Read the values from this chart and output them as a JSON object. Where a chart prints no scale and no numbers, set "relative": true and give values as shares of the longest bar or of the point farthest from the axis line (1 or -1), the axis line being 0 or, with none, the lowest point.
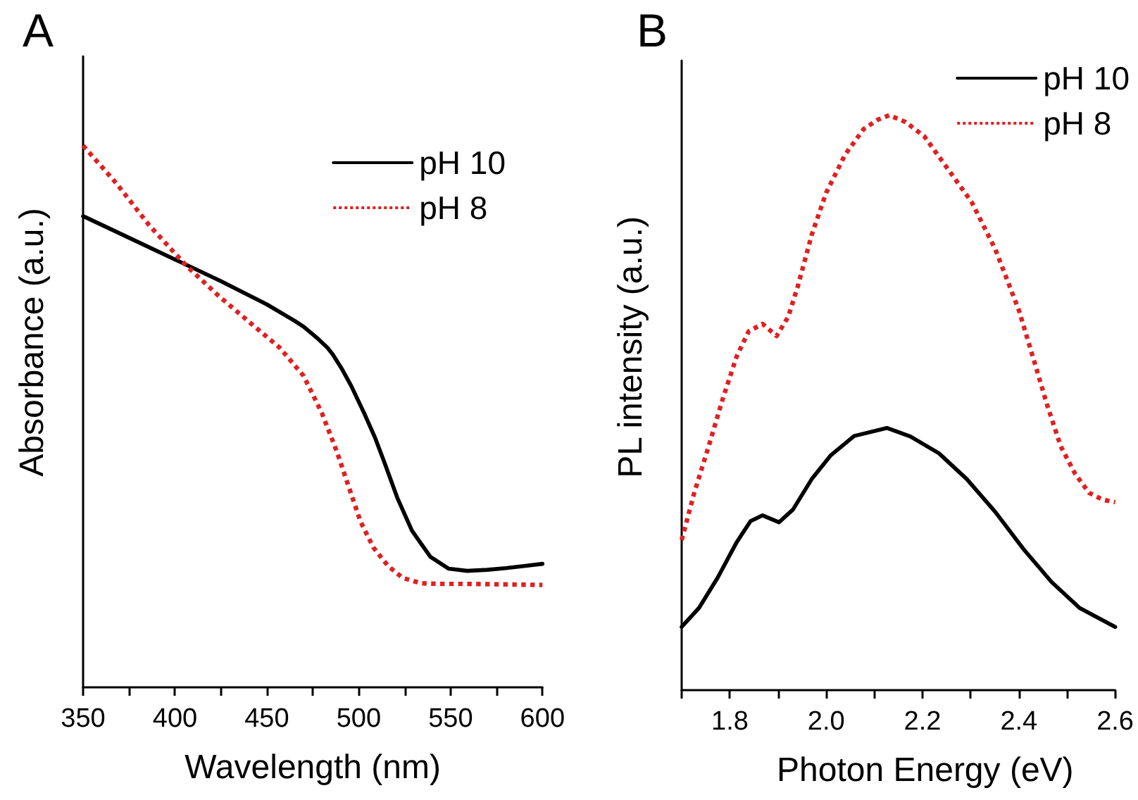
{
  "chart_data": [
    {
      "type": "line",
      "title": "A",
      "xlabel": "Wavelength (nm)",
      "ylabel": "Absorbance (a.u.)",
      "relative": true,
      "xlim": [
        350,
        600
      ],
      "xticks": [
        350,
        {
          "value": 375,
          "label": null
        },
        400,
        {
          "value": 425,
          "label": null
        },
        450,
        {
          "value": 475,
          "label": null
        },
        500,
        {
          "value": 525,
          "label": null
        },
        550,
        {
          "value": 575,
          "label": null
        },
        600
      ],
      "tick_labels": "x",
      "legend": "top right",
      "series": [
        {
          "name": "pH 10",
          "color": "#000000",
          "line_style": "solid",
          "x": [
            350,
            375,
            400,
            425,
            450,
            465,
            470,
            478,
            483,
            486,
            491,
            496,
            503,
            509,
            514,
            521,
            529,
            539,
            549,
            559,
            570,
            580,
            590,
            600
          ],
          "values": [
            0.87,
            0.83,
            0.79,
            0.75,
            0.707,
            0.677,
            0.666,
            0.643,
            0.627,
            0.614,
            0.587,
            0.556,
            0.506,
            0.46,
            0.415,
            0.35,
            0.289,
            0.241,
            0.219,
            0.215,
            0.217,
            0.22,
            0.224,
            0.228
          ]
        },
        {
          "name": "pH 8",
          "color": "#e02020",
          "line_style": "dotted",
          "x": [
            350,
            368,
            386,
            406,
            424,
            442,
            457,
            470,
            480,
            488,
            494,
            501,
            508,
            516,
            524,
            534,
            545,
            559,
            580,
            600
          ],
          "values": [
            1.0,
            0.931,
            0.853,
            0.779,
            0.722,
            0.67,
            0.627,
            0.575,
            0.506,
            0.436,
            0.376,
            0.306,
            0.258,
            0.224,
            0.202,
            0.192,
            0.191,
            0.191,
            0.19,
            0.189
          ]
        }
      ]
    },
    {
      "type": "line",
      "title": "B",
      "xlabel": "Photon Energy (eV)",
      "ylabel": "PL intensity (a.u.)",
      "relative": true,
      "xlim": [
        1.7,
        2.6
      ],
      "xticks": [
        {
          "value": 1.7,
          "label": null
        },
        1.8,
        {
          "value": 1.9,
          "label": null
        },
        {
          "value": 2,
          "label": "2.0"
        },
        {
          "value": 2.1,
          "label": null
        },
        2.2,
        {
          "value": 2.3,
          "label": null
        },
        2.4,
        {
          "value": 2.5,
          "label": null
        },
        2.6
      ],
      "tick_labels": "x",
      "legend": "top right",
      "series": [
        {
          "name": "pH 10",
          "color": "#000000",
          "line_style": "solid",
          "x": [
            1.7,
            1.736,
            1.775,
            1.814,
            1.843,
            1.868,
            1.902,
            1.931,
            1.97,
            2.009,
            2.058,
            2.126,
            2.175,
            2.234,
            2.292,
            2.351,
            2.41,
            2.468,
            2.526,
            2.6
          ],
          "values": [
            0.11,
            0.143,
            0.196,
            0.257,
            0.294,
            0.304,
            0.292,
            0.314,
            0.367,
            0.408,
            0.442,
            0.456,
            0.441,
            0.412,
            0.367,
            0.31,
            0.245,
            0.188,
            0.143,
            0.11
          ]
        },
        {
          "name": "pH 8",
          "color": "#e02020",
          "line_style": "dotted",
          "x": [
            1.7,
            1.726,
            1.756,
            1.785,
            1.814,
            1.839,
            1.868,
            1.897,
            1.921,
            1.941,
            1.97,
            2.0,
            2.039,
            2.078,
            2.107,
            2.131,
            2.165,
            2.204,
            2.253,
            2.302,
            2.351,
            2.4,
            2.429,
            2.458,
            2.487,
            2.517,
            2.546,
            2.575,
            2.6
          ],
          "values": [
            0.261,
            0.343,
            0.424,
            0.506,
            0.58,
            0.624,
            0.637,
            0.616,
            0.649,
            0.702,
            0.792,
            0.865,
            0.931,
            0.976,
            0.992,
            1.0,
            0.988,
            0.963,
            0.906,
            0.849,
            0.767,
            0.661,
            0.58,
            0.498,
            0.424,
            0.376,
            0.343,
            0.331,
            0.327
          ]
        }
      ]
    }
  ]
}
